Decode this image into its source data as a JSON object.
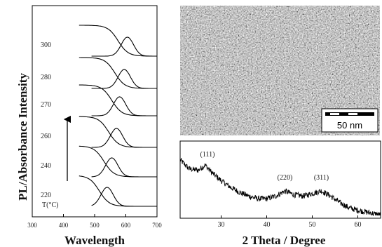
{
  "panel_uv": {
    "ylabel": "PL/Absorbance Intensity",
    "xlabel": "Wavelength",
    "arrow_label": "T(°C)",
    "x_ticks": [
      "300",
      "400",
      "500",
      "600",
      "700"
    ]
  },
  "tem": {
    "scale_label": "50 nm",
    "scale_nm": 50
  },
  "panel_xrd": {
    "xlabel": "2 Theta / Degree",
    "x_ticks": [
      "30",
      "40",
      "50",
      "60"
    ],
    "peaks": [
      {
        "label": "(111)",
        "x": 27
      },
      {
        "label": "(220)",
        "x": 44
      },
      {
        "label": "(311)",
        "x": 52
      }
    ]
  },
  "chart_data": [
    {
      "type": "line",
      "title": "",
      "xlabel": "Wavelength",
      "ylabel": "PL/Absorbance Intensity",
      "xlim": [
        300,
        700
      ],
      "x_ticks": [
        300,
        400,
        500,
        600,
        700
      ],
      "series": [
        {
          "name": "300",
          "absorbance_edge": 575,
          "pl_peak": 605
        },
        {
          "name": "280",
          "absorbance_edge": 565,
          "pl_peak": 595
        },
        {
          "name": "270",
          "absorbance_edge": 555,
          "pl_peak": 580
        },
        {
          "name": "260",
          "absorbance_edge": 545,
          "pl_peak": 570
        },
        {
          "name": "240",
          "absorbance_edge": 530,
          "pl_peak": 555
        },
        {
          "name": "220",
          "absorbance_edge": 515,
          "pl_peak": 540
        }
      ]
    },
    {
      "type": "line",
      "title": "",
      "xlabel": "2 Theta / Degree",
      "ylabel": "",
      "xlim": [
        21,
        65
      ],
      "x_ticks": [
        30,
        40,
        50,
        60
      ],
      "series": [
        {
          "x": [
            21,
            23,
            25,
            26.5,
            28,
            30,
            32,
            34,
            36,
            38,
            40,
            42,
            44,
            46,
            48,
            50,
            52,
            54,
            56,
            58,
            60,
            62,
            64,
            65
          ],
          "y": [
            0.86,
            0.72,
            0.7,
            0.78,
            0.66,
            0.54,
            0.44,
            0.36,
            0.3,
            0.26,
            0.26,
            0.3,
            0.38,
            0.32,
            0.3,
            0.34,
            0.38,
            0.3,
            0.2,
            0.12,
            0.08,
            0.05,
            0.02,
            0.01
          ]
        }
      ]
    }
  ]
}
